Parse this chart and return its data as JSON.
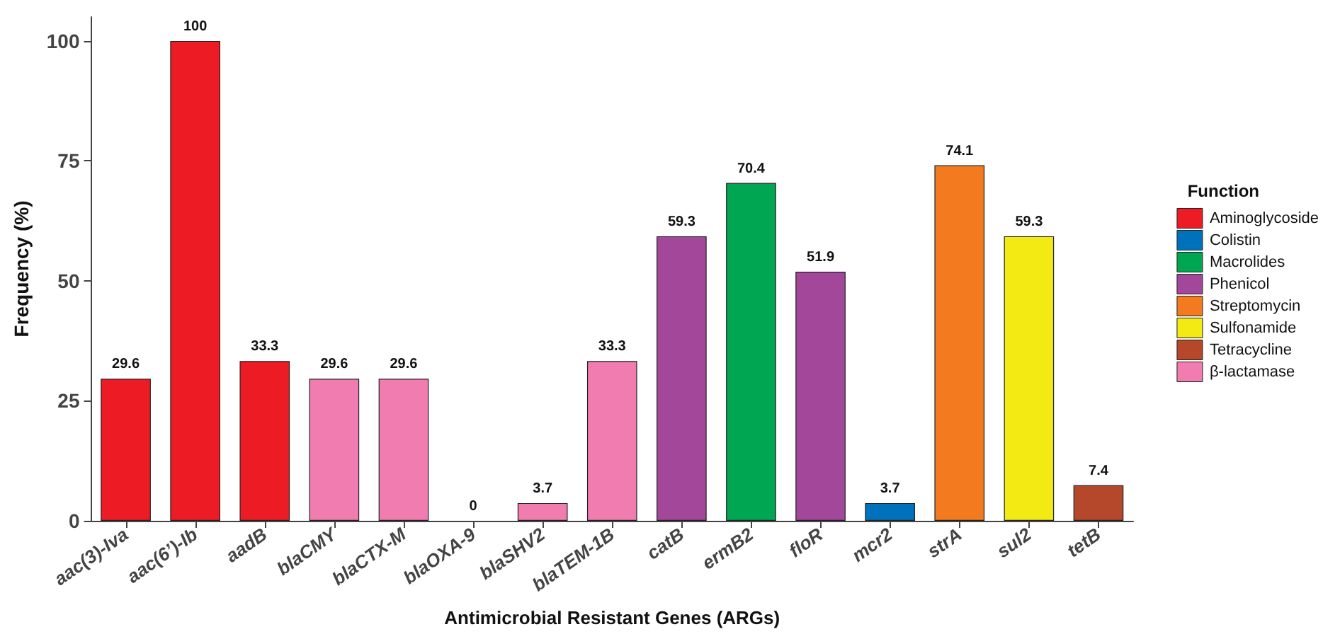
{
  "chart_data": {
    "type": "bar",
    "xlabel": "Antimicrobial Resistant Genes (ARGs)",
    "ylabel": "Frequency (%)",
    "legend_title": "Function",
    "categories": [
      "aac(3)-Iva",
      "aac(6’)-Ib",
      "aadB",
      "blaCMY",
      "blaCTX-M",
      "blaOXA-9",
      "blaSHV2",
      "blaTEM-1B",
      "catB",
      "ermB2",
      "floR",
      "mcr2",
      "strA",
      "sul2",
      "tetB"
    ],
    "series": [
      {
        "name": "Aminoglycoside",
        "color": "#ed1c24",
        "values": [
          29.6,
          100,
          33.3,
          null,
          null,
          null,
          null,
          null,
          null,
          null,
          null,
          null,
          null,
          null,
          null
        ]
      },
      {
        "name": "Colistin",
        "color": "#0072bc",
        "values": [
          null,
          null,
          null,
          null,
          null,
          null,
          null,
          null,
          null,
          null,
          null,
          3.7,
          null,
          null,
          null
        ]
      },
      {
        "name": "Macrolides",
        "color": "#00a651",
        "values": [
          null,
          null,
          null,
          null,
          null,
          null,
          null,
          null,
          null,
          70.4,
          null,
          null,
          null,
          null,
          null
        ]
      },
      {
        "name": "Phenicol",
        "color": "#a3479a",
        "values": [
          null,
          null,
          null,
          null,
          null,
          null,
          null,
          null,
          59.3,
          null,
          51.9,
          null,
          null,
          null,
          null
        ]
      },
      {
        "name": "Streptomycin",
        "color": "#f47a20",
        "values": [
          null,
          null,
          null,
          null,
          null,
          null,
          null,
          null,
          null,
          null,
          null,
          null,
          74.1,
          null,
          null
        ]
      },
      {
        "name": "Sulfonamide",
        "color": "#f2ea12",
        "values": [
          null,
          null,
          null,
          null,
          null,
          null,
          null,
          null,
          null,
          null,
          null,
          null,
          null,
          59.3,
          null
        ]
      },
      {
        "name": "Tetracycline",
        "color": "#b5472a",
        "values": [
          null,
          null,
          null,
          null,
          null,
          null,
          null,
          null,
          null,
          null,
          null,
          null,
          null,
          null,
          7.4
        ]
      },
      {
        "name": "β-lactamase",
        "color": "#f07cb0",
        "values": [
          null,
          null,
          null,
          29.6,
          29.6,
          0,
          3.7,
          33.3,
          null,
          null,
          null,
          null,
          null,
          null,
          null
        ]
      }
    ],
    "ylim": [
      0,
      105
    ],
    "yticks": [
      0,
      25,
      50,
      75,
      100
    ],
    "grid": false,
    "legend": "right",
    "data_labels": true
  }
}
